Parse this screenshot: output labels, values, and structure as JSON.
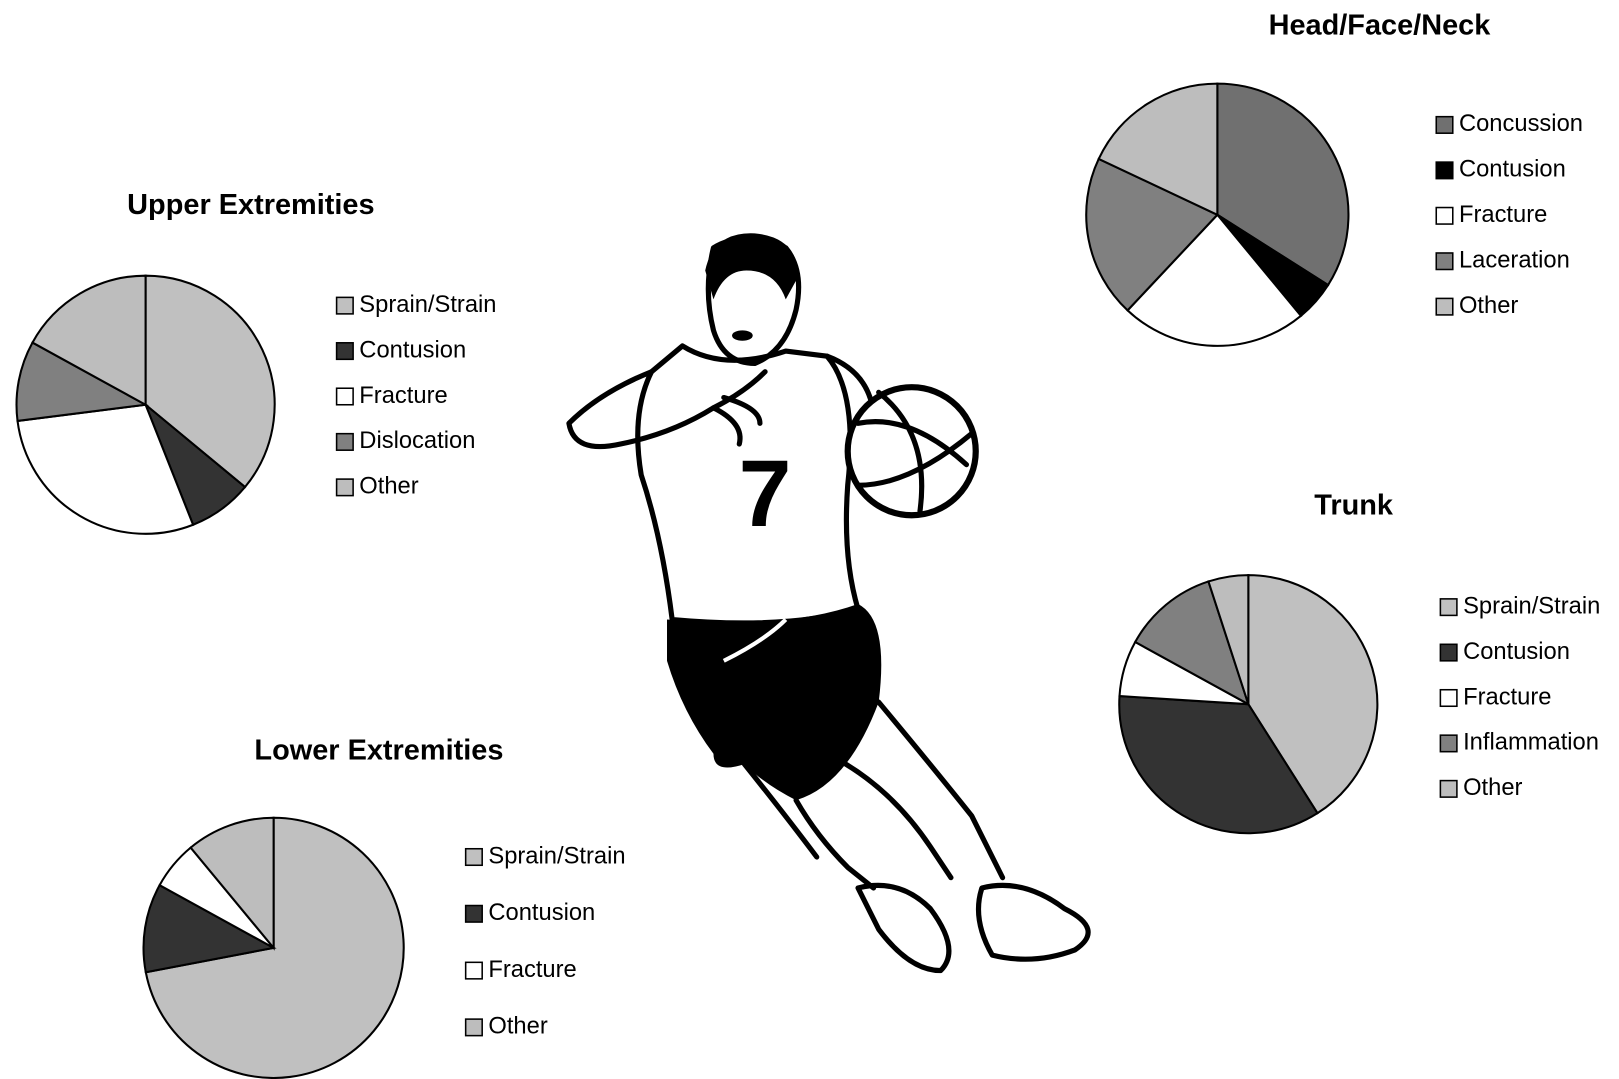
{
  "chart_data": [
    {
      "type": "pie",
      "title": "Upper Extremities",
      "categories": [
        "Sprain/Strain",
        "Contusion",
        "Fracture",
        "Dislocation",
        "Other"
      ],
      "values": [
        36,
        8,
        29,
        10,
        17
      ],
      "colors": [
        "#c0c0c0",
        "#333333",
        "#ffffff",
        "#808080",
        "#bdbdbd"
      ]
    },
    {
      "type": "pie",
      "title": "Head/Face/Neck",
      "categories": [
        "Concussion",
        "Contusion",
        "Fracture",
        "Laceration",
        "Other"
      ],
      "values": [
        34,
        5,
        23,
        20,
        18
      ],
      "colors": [
        "#707070",
        "#000000",
        "#ffffff",
        "#808080",
        "#bdbdbd"
      ]
    },
    {
      "type": "pie",
      "title": "Trunk",
      "categories": [
        "Sprain/Strain",
        "Contusion",
        "Fracture",
        "Inflammation",
        "Other"
      ],
      "values": [
        41,
        35,
        7,
        12,
        5
      ],
      "colors": [
        "#c0c0c0",
        "#333333",
        "#ffffff",
        "#808080",
        "#bdbdbd"
      ]
    },
    {
      "type": "pie",
      "title": "Lower Extremities",
      "categories": [
        "Sprain/Strain",
        "Contusion",
        "Fracture",
        "Other"
      ],
      "values": [
        72,
        11,
        6,
        11
      ],
      "colors": [
        "#c0c0c0",
        "#333333",
        "#ffffff",
        "#bdbdbd"
      ]
    }
  ],
  "illustration": {
    "jersey_number": "7"
  }
}
